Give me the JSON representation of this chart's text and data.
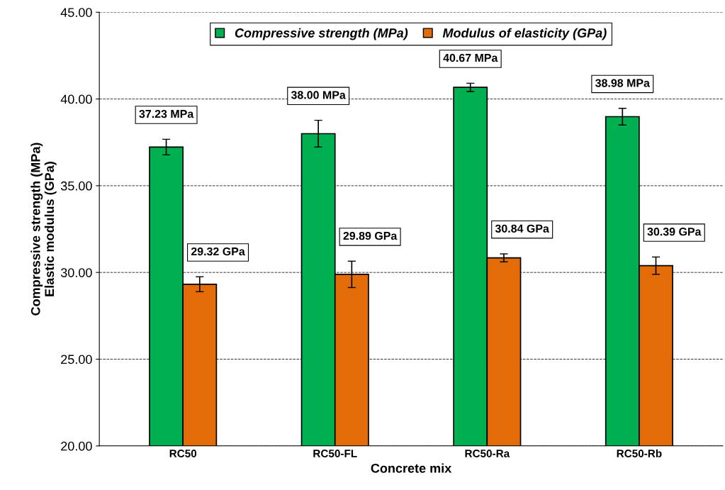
{
  "chart_data": {
    "type": "bar",
    "xlabel": "Concrete mix",
    "ylabel": "Compressive strength (MPa)\nElastic modulus (GPa)",
    "categories": [
      "RC50",
      "RC50-FL",
      "RC50-Ra",
      "RC50-Rb"
    ],
    "series": [
      {
        "name": "Compressive strength (MPa)",
        "color": "#00b050",
        "values": [
          37.23,
          38.0,
          40.67,
          38.98
        ],
        "errors": [
          0.45,
          0.77,
          0.24,
          0.48
        ],
        "value_labels": [
          "37.23 MPa",
          "38.00 MPa",
          "40.67 MPa",
          "38.98 MPa"
        ]
      },
      {
        "name": "Modulus of elasticity (GPa)",
        "color": "#e36c09",
        "values": [
          29.32,
          29.89,
          30.84,
          30.39
        ],
        "errors": [
          0.43,
          0.76,
          0.23,
          0.5
        ],
        "value_labels": [
          "29.32 GPa",
          "29.89 GPa",
          "30.84 GPa",
          "30.39 GPa"
        ]
      }
    ],
    "ylim": [
      20,
      45
    ],
    "yticks": [
      {
        "value": 20,
        "label": "20.00"
      },
      {
        "value": 25,
        "label": "25.00"
      },
      {
        "value": 30,
        "label": "30.00"
      },
      {
        "value": 35,
        "label": "35.00"
      },
      {
        "value": 40,
        "label": "40.00"
      },
      {
        "value": 45,
        "label": "45.00"
      }
    ],
    "grid": "y",
    "legend": "top"
  }
}
